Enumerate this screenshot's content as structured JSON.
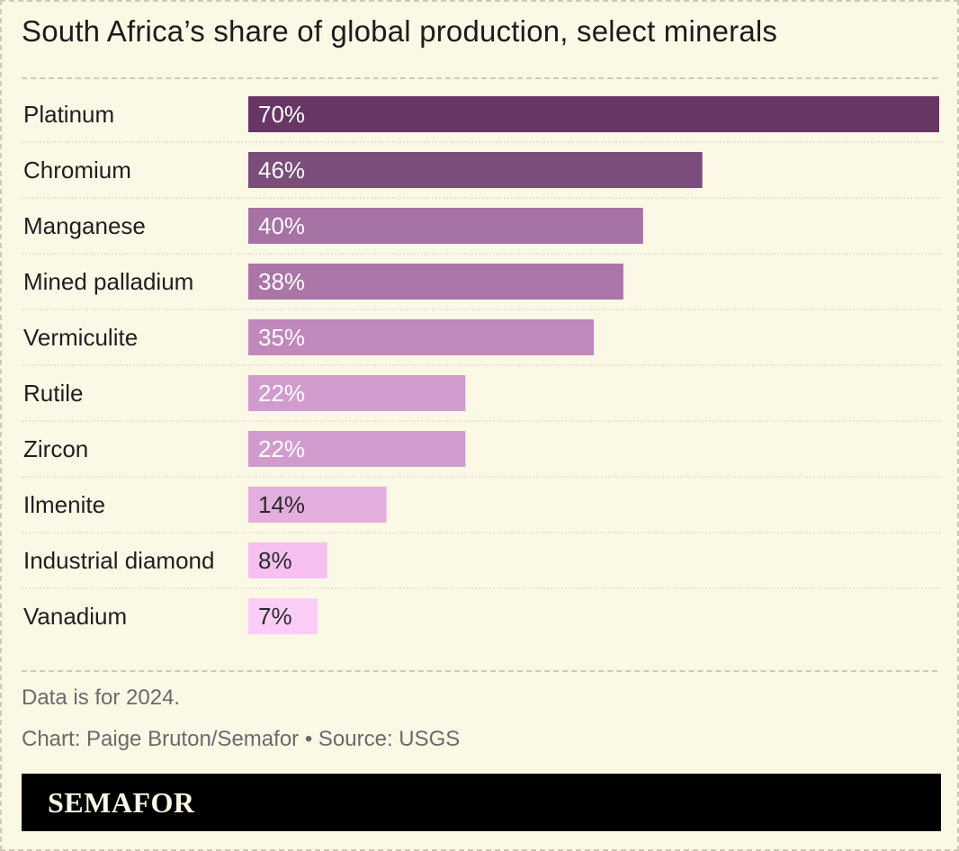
{
  "header": {
    "title": "South Africa’s share of global production, select minerals"
  },
  "chart_data": {
    "type": "bar",
    "orientation": "horizontal",
    "title": "South Africa’s share of global production, select minerals",
    "categories": [
      "Platinum",
      "Chromium",
      "Manganese",
      "Mined palladium",
      "Vermiculite",
      "Rutile",
      "Zircon",
      "Ilmenite",
      "Industrial diamond",
      "Vanadium"
    ],
    "values": [
      70,
      46,
      40,
      38,
      35,
      22,
      22,
      14,
      8,
      7
    ],
    "value_labels": [
      "70%",
      "46%",
      "40%",
      "38%",
      "35%",
      "22%",
      "22%",
      "14%",
      "8%",
      "7%"
    ],
    "unit": "%",
    "xlim": [
      0,
      70
    ],
    "grid": false,
    "colors": [
      "#673665",
      "#7a4d7b",
      "#a672a4",
      "#ab75a8",
      "#c088bd",
      "#d19ccd",
      "#d19ccd",
      "#e4aede",
      "#f7c0f0",
      "#fbcdf6"
    ],
    "label_colors": [
      "#ffffff",
      "#ffffff",
      "#ffffff",
      "#ffffff",
      "#ffffff",
      "#ffffff",
      "#ffffff",
      "#2a2a2a",
      "#2a2a2a",
      "#2a2a2a"
    ]
  },
  "footer": {
    "note": "Data is for 2024.",
    "credit": "Chart: Paige Bruton/Semafor • Source: USGS",
    "logo": "SEMAFOR"
  }
}
